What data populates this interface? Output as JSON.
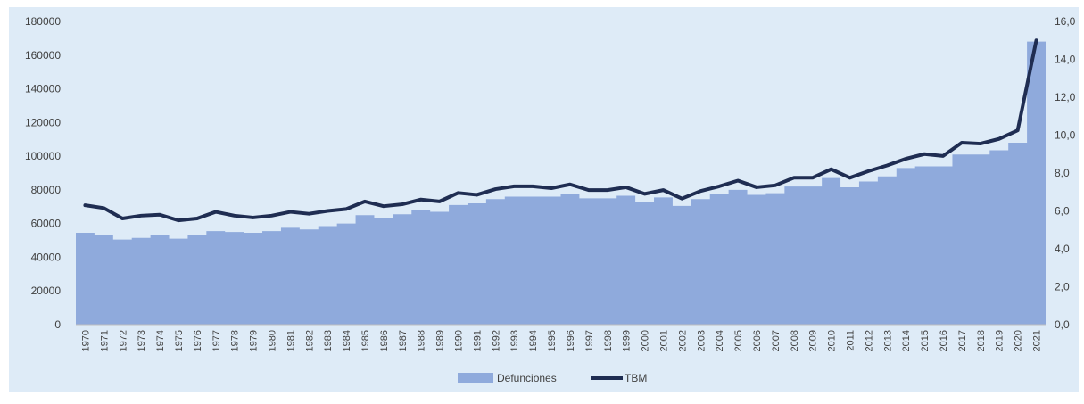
{
  "chart_data": {
    "type": "area",
    "categories": [
      "1970",
      "1971",
      "1972",
      "1973",
      "1974",
      "1975",
      "1976",
      "1977",
      "1978",
      "1979",
      "1980",
      "1981",
      "1982",
      "1983",
      "1984",
      "1985",
      "1986",
      "1987",
      "1988",
      "1989",
      "1990",
      "1991",
      "1992",
      "1993",
      "1994",
      "1995",
      "1996",
      "1997",
      "1998",
      "1999",
      "2000",
      "2001",
      "2002",
      "2003",
      "2004",
      "2005",
      "2006",
      "2007",
      "2008",
      "2009",
      "2010",
      "2011",
      "2012",
      "2013",
      "2014",
      "2015",
      "2016",
      "2017",
      "2018",
      "2019",
      "2020",
      "2021"
    ],
    "series": [
      {
        "name": "Defunciones",
        "chart_type": "area",
        "axis": "left",
        "color": "#8FAADC",
        "values": [
          54500,
          53500,
          50500,
          51500,
          53000,
          51000,
          53000,
          55500,
          55000,
          54500,
          55500,
          57500,
          56500,
          58500,
          60000,
          65000,
          63500,
          65500,
          68000,
          67000,
          71000,
          72000,
          74500,
          76000,
          76000,
          76000,
          77500,
          75000,
          75000,
          76500,
          73000,
          75500,
          70500,
          74500,
          77500,
          80000,
          77000,
          78000,
          82000,
          82000,
          87000,
          81500,
          85000,
          88000,
          93000,
          94000,
          94000,
          101000,
          101000,
          103500,
          108000,
          168000
        ]
      },
      {
        "name": "TBM",
        "chart_type": "line",
        "axis": "right",
        "color": "#1F2D52",
        "values": [
          6.3,
          6.15,
          5.6,
          5.75,
          5.8,
          5.5,
          5.6,
          5.95,
          5.75,
          5.65,
          5.75,
          5.95,
          5.85,
          6.0,
          6.1,
          6.5,
          6.25,
          6.35,
          6.6,
          6.5,
          6.95,
          6.85,
          7.15,
          7.3,
          7.3,
          7.2,
          7.4,
          7.1,
          7.1,
          7.25,
          6.9,
          7.1,
          6.65,
          7.05,
          7.3,
          7.6,
          7.25,
          7.35,
          7.75,
          7.75,
          8.2,
          7.75,
          8.1,
          8.4,
          8.75,
          9.0,
          8.9,
          9.6,
          9.55,
          9.8,
          10.25,
          15.0
        ]
      }
    ],
    "y_left": {
      "min": 0,
      "max": 180000,
      "ticks": [
        "0",
        "20000",
        "40000",
        "60000",
        "80000",
        "100000",
        "120000",
        "140000",
        "160000",
        "180000"
      ]
    },
    "y_right": {
      "min": 0,
      "max": 16,
      "ticks": [
        "0,0",
        "2,0",
        "4,0",
        "6,0",
        "8,0",
        "10,0",
        "12,0",
        "14,0",
        "16,0"
      ]
    },
    "grid": false,
    "legend_position": "bottom",
    "legend": [
      {
        "label": "Defunciones",
        "swatch": "area",
        "color": "#8FAADC"
      },
      {
        "label": "TBM",
        "swatch": "line",
        "color": "#1F2D52"
      }
    ],
    "background_color": "#DEEBF7"
  }
}
